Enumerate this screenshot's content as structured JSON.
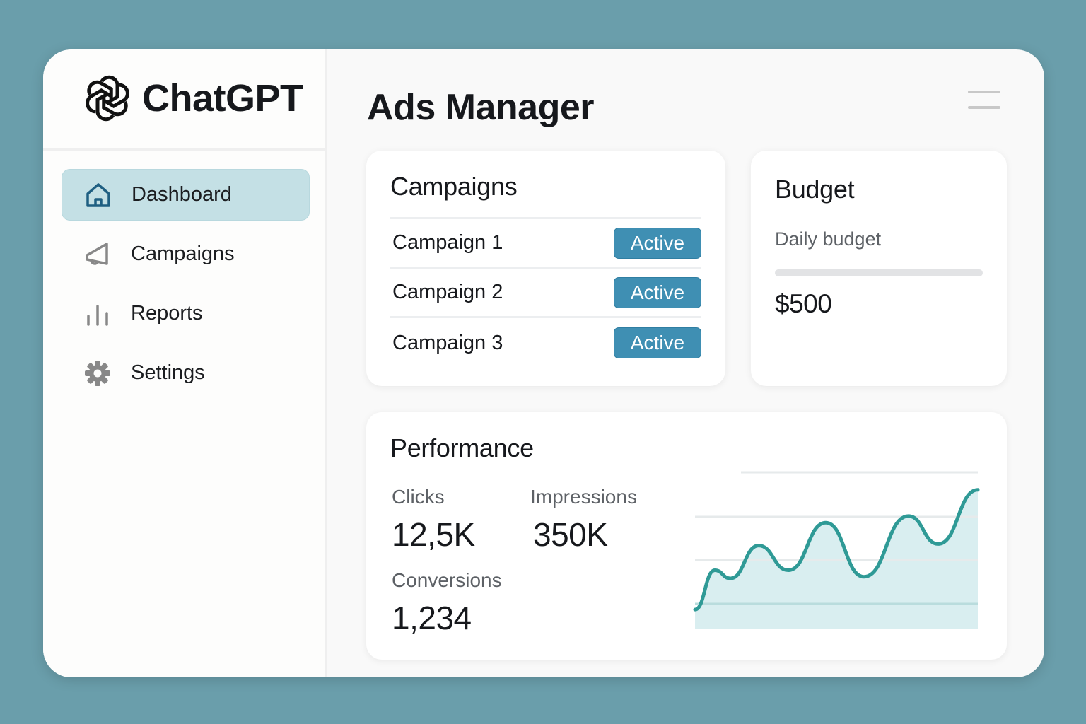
{
  "brand": {
    "name": "ChatGPT",
    "logo_icon": "openai-logo-icon"
  },
  "sidebar": {
    "items": [
      {
        "label": "Dashboard",
        "icon": "home-icon",
        "active": true
      },
      {
        "label": "Campaigns",
        "icon": "megaphone-icon",
        "active": false
      },
      {
        "label": "Reports",
        "icon": "bar-chart-icon",
        "active": false
      },
      {
        "label": "Settings",
        "icon": "gear-icon",
        "active": false
      }
    ]
  },
  "header": {
    "title": "Ads Manager",
    "menu_icon": "hamburger-menu-icon"
  },
  "campaigns": {
    "title": "Campaigns",
    "rows": [
      {
        "name": "Campaign 1",
        "status": "Active"
      },
      {
        "name": "Campaign 2",
        "status": "Active"
      },
      {
        "name": "Campaign 3",
        "status": "Active"
      }
    ]
  },
  "budget": {
    "title": "Budget",
    "label": "Daily budget",
    "value": "$500"
  },
  "performance": {
    "title": "Performance",
    "metrics": {
      "clicks": {
        "label": "Clicks",
        "value": "12,5K"
      },
      "impressions": {
        "label": "Impressions",
        "value": "350K"
      },
      "conversions": {
        "label": "Conversions",
        "value": "1,234"
      }
    }
  },
  "colors": {
    "accent": "#3f8fb3",
    "active_nav": "#c4e0e5",
    "line": "#2f9a96",
    "area": "#d9eef0",
    "background": "#6a9eab"
  },
  "chart_data": {
    "type": "area",
    "values": [
      12,
      36,
      31,
      51,
      36,
      65,
      32,
      69,
      52,
      85
    ],
    "grid": true,
    "ylim": [
      0,
      100
    ]
  }
}
